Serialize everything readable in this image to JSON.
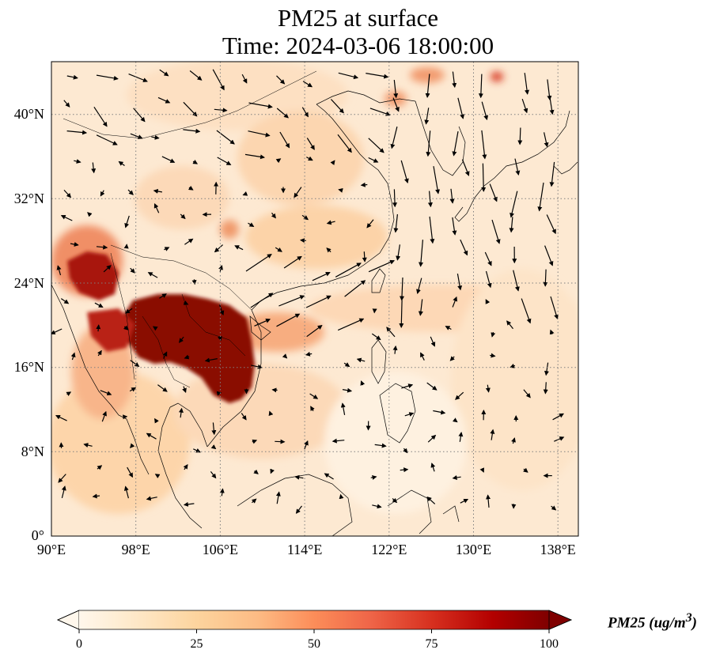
{
  "title": {
    "line1": "PM25 at surface",
    "line2": "Time: 2024-03-06 18:00:00"
  },
  "map": {
    "projection": "PlateCarree",
    "lon_range": [
      90,
      139
    ],
    "lat_range": [
      0,
      45
    ],
    "gridlines": "dotted",
    "features": [
      "coastlines",
      "country-borders"
    ],
    "lon_ticks": [
      "90°E",
      "98°E",
      "106°E",
      "114°E",
      "122°E",
      "130°E",
      "138°E"
    ],
    "lat_ticks": [
      "0°",
      "8°N",
      "16°N",
      "24°N",
      "32°N",
      "40°N"
    ]
  },
  "field": {
    "variable": "PM25",
    "colormap": "OrRd",
    "range": [
      0,
      100
    ],
    "hotspot": "Indochina (northern Laos, Myanmar, Thailand, Vietnam) above 100"
  },
  "wind_vectors": {
    "shown": true,
    "color": "#000000"
  },
  "colorbar": {
    "label": "PM25 (ug/m",
    "label_sup": "3",
    "label_close": ")",
    "ticks": [
      "0",
      "25",
      "50",
      "75",
      "100"
    ],
    "extend": "both",
    "colors": [
      "#fff7ec",
      "#fee8c8",
      "#fdd49e",
      "#fdbb84",
      "#fc8d59",
      "#ef6548",
      "#d7301f",
      "#b30000",
      "#7f0000"
    ]
  }
}
